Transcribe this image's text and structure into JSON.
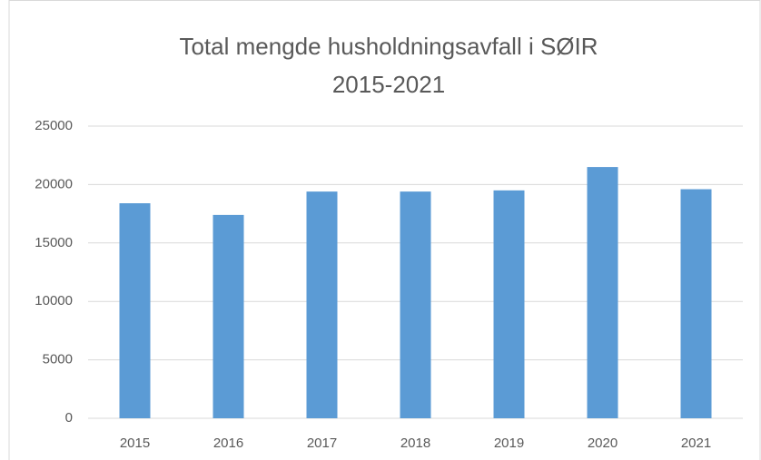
{
  "chart_data": {
    "type": "bar",
    "title": [
      "Total mengde husholdningsavfall i SØIR",
      "2015-2021"
    ],
    "categories": [
      "2015",
      "2016",
      "2017",
      "2018",
      "2019",
      "2020",
      "2021"
    ],
    "values": [
      18400,
      17400,
      19400,
      19400,
      19500,
      21500,
      19600
    ],
    "color": "#5b9bd5",
    "ylim": [
      0,
      25000
    ],
    "yticks": [
      0,
      5000,
      10000,
      15000,
      20000,
      25000
    ],
    "grid": true
  }
}
